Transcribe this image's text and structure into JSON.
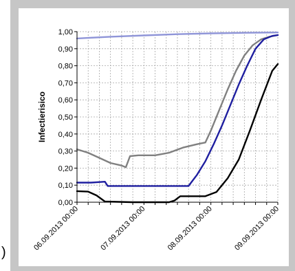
{
  "edge_glyph": ")",
  "colors": {
    "frame": "#c6c6c6",
    "plot_bg": "#ffffff",
    "grid": "#a6a6a6",
    "series_light_blue": "#8f95d8",
    "series_gray": "#808080",
    "series_dark_blue": "#1f1fa0",
    "series_black": "#000000"
  },
  "chart_data": {
    "type": "line",
    "title": "",
    "xlabel": "",
    "ylabel": "Infectierisico",
    "ylim": [
      0,
      1
    ],
    "xlim": [
      "06.09.2013 00:00",
      "09.09.2013 00:00"
    ],
    "y_ticks": [
      "0,00",
      "0,10",
      "0,20",
      "0,30",
      "0,40",
      "0,50",
      "0,60",
      "0,70",
      "0,80",
      "0,90",
      "1,00"
    ],
    "x_ticks": [
      "06.09.2013 00:00",
      "07.09.2013 00:00",
      "08.09.2013 00:00",
      "09.09.2013 00:00"
    ],
    "grid": "on, dashed",
    "legend": "none",
    "series": [
      {
        "color": "#8f95d8",
        "points": [
          [
            "06.09.2013 00:00",
            0.96
          ],
          [
            "06.09.2013 12:00",
            0.97
          ],
          [
            "07.09.2013 00:00",
            0.978
          ],
          [
            "07.09.2013 12:00",
            0.985
          ],
          [
            "08.09.2013 00:00",
            0.99
          ],
          [
            "08.09.2013 12:00",
            0.993
          ],
          [
            "09.09.2013 00:00",
            0.995
          ]
        ]
      },
      {
        "color": "#808080",
        "points": [
          [
            "06.09.2013 00:00",
            0.31
          ],
          [
            "06.09.2013 04:00",
            0.29
          ],
          [
            "06.09.2013 08:00",
            0.26
          ],
          [
            "06.09.2013 12:00",
            0.23
          ],
          [
            "06.09.2013 16:00",
            0.215
          ],
          [
            "06.09.2013 17:30",
            0.205
          ],
          [
            "06.09.2013 19:00",
            0.27
          ],
          [
            "06.09.2013 22:00",
            0.275
          ],
          [
            "07.09.2013 04:00",
            0.275
          ],
          [
            "07.09.2013 09:00",
            0.29
          ],
          [
            "07.09.2013 14:00",
            0.32
          ],
          [
            "07.09.2013 19:00",
            0.34
          ],
          [
            "07.09.2013 22:00",
            0.35
          ],
          [
            "08.09.2013 00:00",
            0.42
          ],
          [
            "08.09.2013 03:00",
            0.54
          ],
          [
            "08.09.2013 06:00",
            0.66
          ],
          [
            "08.09.2013 09:00",
            0.77
          ],
          [
            "08.09.2013 12:00",
            0.86
          ],
          [
            "08.09.2013 15:00",
            0.92
          ],
          [
            "08.09.2013 18:00",
            0.955
          ],
          [
            "08.09.2013 21:00",
            0.97
          ],
          [
            "09.09.2013 00:00",
            0.98
          ]
        ]
      },
      {
        "color": "#1f1fa0",
        "points": [
          [
            "06.09.2013 00:00",
            0.115
          ],
          [
            "06.09.2013 05:00",
            0.115
          ],
          [
            "06.09.2013 10:00",
            0.12
          ],
          [
            "06.09.2013 11:00",
            0.095
          ],
          [
            "06.09.2013 20:00",
            0.095
          ],
          [
            "07.09.2013 08:00",
            0.095
          ],
          [
            "07.09.2013 16:00",
            0.095
          ],
          [
            "07.09.2013 19:00",
            0.16
          ],
          [
            "07.09.2013 22:00",
            0.24
          ],
          [
            "08.09.2013 01:00",
            0.34
          ],
          [
            "08.09.2013 04:00",
            0.45
          ],
          [
            "08.09.2013 07:00",
            0.57
          ],
          [
            "08.09.2013 10:00",
            0.69
          ],
          [
            "08.09.2013 13:00",
            0.8
          ],
          [
            "08.09.2013 16:00",
            0.9
          ],
          [
            "08.09.2013 19:00",
            0.955
          ],
          [
            "08.09.2013 22:00",
            0.975
          ],
          [
            "09.09.2013 00:00",
            0.98
          ]
        ]
      },
      {
        "color": "#000000",
        "points": [
          [
            "06.09.2013 00:00",
            0.065
          ],
          [
            "06.09.2013 04:00",
            0.062
          ],
          [
            "06.09.2013 07:00",
            0.04
          ],
          [
            "06.09.2013 10:00",
            0.004
          ],
          [
            "06.09.2013 20:00",
            0.0
          ],
          [
            "07.09.2013 09:00",
            0.0
          ],
          [
            "07.09.2013 11:00",
            0.01
          ],
          [
            "07.09.2013 13:00",
            0.035
          ],
          [
            "07.09.2013 22:00",
            0.035
          ],
          [
            "08.09.2013 02:00",
            0.06
          ],
          [
            "08.09.2013 06:00",
            0.14
          ],
          [
            "08.09.2013 10:00",
            0.25
          ],
          [
            "08.09.2013 14:00",
            0.42
          ],
          [
            "08.09.2013 18:00",
            0.6
          ],
          [
            "08.09.2013 22:00",
            0.77
          ],
          [
            "09.09.2013 00:00",
            0.81
          ]
        ]
      }
    ]
  }
}
